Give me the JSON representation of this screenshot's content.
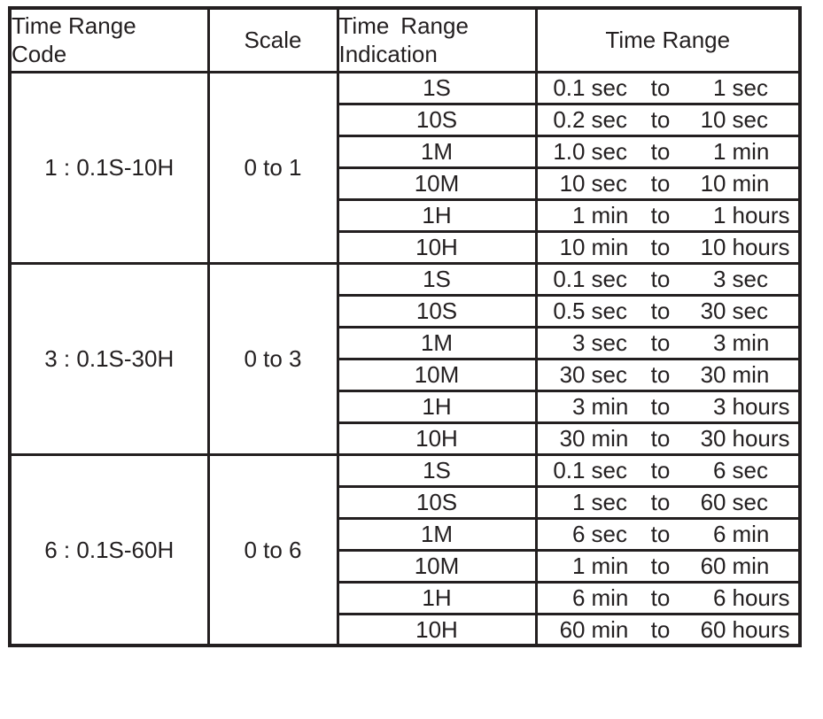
{
  "to_word": "to",
  "header": {
    "code": "Time Range\nCode",
    "scale": "Scale",
    "indication": "Time Range\nIndication",
    "range": "Time Range"
  },
  "groups": [
    {
      "code": "1 : 0.1S-10H",
      "scale": "0 to 1",
      "rows": [
        {
          "ind": "1S",
          "f_val": "0.1",
          "f_unit": "sec",
          "t_val": "1",
          "t_unit": "sec"
        },
        {
          "ind": "10S",
          "f_val": "0.2",
          "f_unit": "sec",
          "t_val": "10",
          "t_unit": "sec"
        },
        {
          "ind": "1M",
          "f_val": "1.0",
          "f_unit": "sec",
          "t_val": "1",
          "t_unit": "min"
        },
        {
          "ind": "10M",
          "f_val": "10",
          "f_unit": "sec",
          "t_val": "10",
          "t_unit": "min"
        },
        {
          "ind": "1H",
          "f_val": "1",
          "f_unit": "min",
          "t_val": "1",
          "t_unit": "hours"
        },
        {
          "ind": "10H",
          "f_val": "10",
          "f_unit": "min",
          "t_val": "10",
          "t_unit": "hours"
        }
      ]
    },
    {
      "code": "3 : 0.1S-30H",
      "scale": "0 to 3",
      "rows": [
        {
          "ind": "1S",
          "f_val": "0.1",
          "f_unit": "sec",
          "t_val": "3",
          "t_unit": "sec"
        },
        {
          "ind": "10S",
          "f_val": "0.5",
          "f_unit": "sec",
          "t_val": "30",
          "t_unit": "sec"
        },
        {
          "ind": "1M",
          "f_val": "3",
          "f_unit": "sec",
          "t_val": "3",
          "t_unit": "min"
        },
        {
          "ind": "10M",
          "f_val": "30",
          "f_unit": "sec",
          "t_val": "30",
          "t_unit": "min"
        },
        {
          "ind": "1H",
          "f_val": "3",
          "f_unit": "min",
          "t_val": "3",
          "t_unit": "hours"
        },
        {
          "ind": "10H",
          "f_val": "30",
          "f_unit": "min",
          "t_val": "30",
          "t_unit": "hours"
        }
      ]
    },
    {
      "code": "6 : 0.1S-60H",
      "scale": "0 to 6",
      "rows": [
        {
          "ind": "1S",
          "f_val": "0.1",
          "f_unit": "sec",
          "t_val": "6",
          "t_unit": "sec"
        },
        {
          "ind": "10S",
          "f_val": "1",
          "f_unit": "sec",
          "t_val": "60",
          "t_unit": "sec"
        },
        {
          "ind": "1M",
          "f_val": "6",
          "f_unit": "sec",
          "t_val": "6",
          "t_unit": "min"
        },
        {
          "ind": "10M",
          "f_val": "1",
          "f_unit": "min",
          "t_val": "60",
          "t_unit": "min"
        },
        {
          "ind": "1H",
          "f_val": "6",
          "f_unit": "min",
          "t_val": "6",
          "t_unit": "hours"
        },
        {
          "ind": "10H",
          "f_val": "60",
          "f_unit": "min",
          "t_val": "60",
          "t_unit": "hours"
        }
      ]
    }
  ]
}
